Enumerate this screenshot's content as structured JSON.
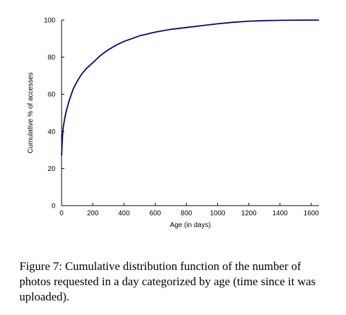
{
  "chart_data": {
    "type": "line",
    "title": "",
    "xlabel": "Age (in days)",
    "ylabel": "Cumulative % of accesses",
    "xlim": [
      0,
      1650
    ],
    "ylim": [
      0,
      100
    ],
    "xticks": [
      0,
      200,
      400,
      600,
      800,
      1000,
      1200,
      1400,
      1600
    ],
    "yticks": [
      0,
      20,
      40,
      60,
      80,
      100
    ],
    "grid": false,
    "legend": "none",
    "series_color": "#000080",
    "series": [
      {
        "x": [
          0,
          5,
          10,
          20,
          30,
          50,
          75,
          100,
          130,
          160,
          200,
          250,
          300,
          350,
          400,
          450,
          500,
          600,
          700,
          800,
          900,
          1000,
          1100,
          1200,
          1300,
          1400,
          1500,
          1600,
          1650
        ],
        "y": [
          27,
          36,
          42,
          47,
          51,
          57,
          63,
          67,
          71,
          74,
          77,
          81,
          84,
          86.5,
          88.5,
          90,
          91.5,
          93.5,
          95,
          96,
          97,
          98,
          98.8,
          99.4,
          99.7,
          99.85,
          99.95,
          100,
          100
        ]
      }
    ]
  },
  "caption": "Figure 7: Cumulative distribution function of the number of photos requested in a day categorized by age (time since it was uploaded)."
}
